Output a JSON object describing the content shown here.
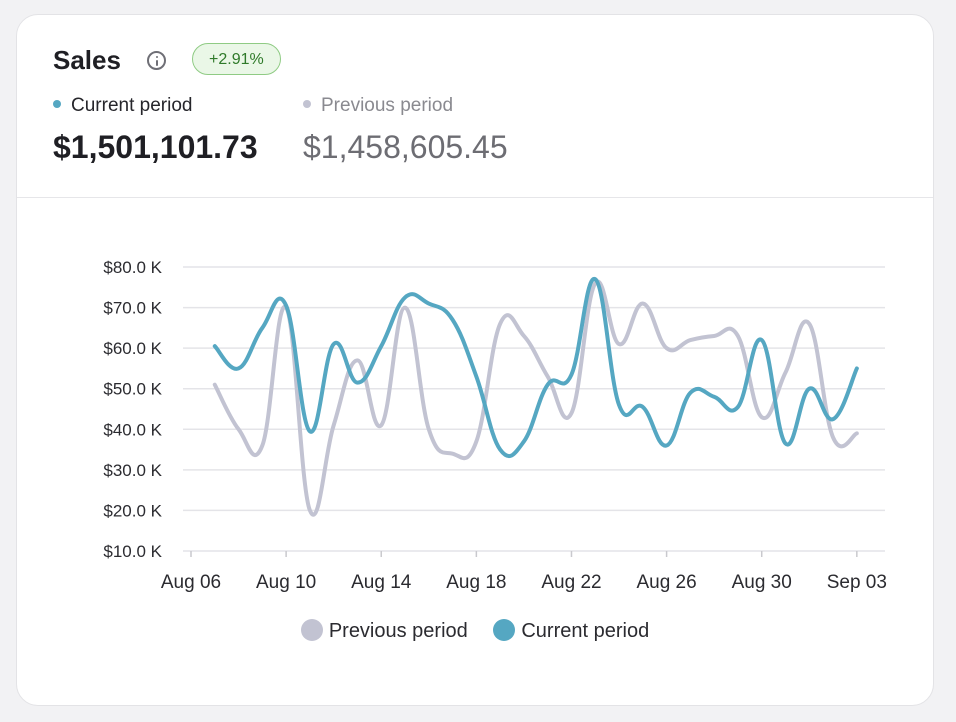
{
  "card": {
    "title": "Sales",
    "info_icon": "info-circle-icon",
    "change_badge": "+2.91%",
    "current_label": "Current period",
    "previous_label": "Previous period",
    "current_total": "$1,501,101.73",
    "previous_total": "$1,458,605.45"
  },
  "colors": {
    "current": "#55a7c2",
    "previous": "#c2c3d2",
    "badge_bg": "#eaf7e7",
    "badge_text": "#2f7a2a"
  },
  "chart_data": {
    "type": "line",
    "title": "",
    "xlabel": "",
    "ylabel": "",
    "ylim": [
      10,
      80
    ],
    "y_ticks": [
      "$10.0 K",
      "$20.0 K",
      "$30.0 K",
      "$40.0 K",
      "$50.0 K",
      "$60.0 K",
      "$70.0 K",
      "$80.0 K"
    ],
    "x_ticks": [
      "Aug 06",
      "Aug 10",
      "Aug 14",
      "Aug 18",
      "Aug 22",
      "Aug 26",
      "Aug 30",
      "Sep 03"
    ],
    "grid": true,
    "legend_position": "bottom",
    "x": [
      "Aug 07",
      "Aug 08",
      "Aug 09",
      "Aug 10",
      "Aug 11",
      "Aug 12",
      "Aug 13",
      "Aug 14",
      "Aug 15",
      "Aug 16",
      "Aug 17",
      "Aug 18",
      "Aug 19",
      "Aug 20",
      "Aug 21",
      "Aug 22",
      "Aug 23",
      "Aug 24",
      "Aug 25",
      "Aug 26",
      "Aug 27",
      "Aug 28",
      "Aug 29",
      "Aug 30",
      "Aug 31",
      "Sep 01",
      "Sep 02",
      "Sep 03"
    ],
    "series": [
      {
        "name": "Previous period",
        "values": [
          51,
          40,
          36,
          70,
          20,
          41,
          57,
          41,
          70,
          40,
          34,
          37,
          66,
          63,
          53,
          44,
          76,
          61,
          71,
          60,
          62,
          63,
          63,
          43,
          54,
          66,
          38,
          39
        ]
      },
      {
        "name": "Current period",
        "values": [
          60.5,
          55,
          65,
          70.5,
          39.5,
          61,
          51.5,
          60.5,
          72.5,
          71,
          67,
          53,
          35,
          37,
          51,
          53.5,
          77,
          46,
          45.5,
          36,
          49,
          48,
          45.5,
          62,
          36.5,
          50,
          42.5,
          55
        ]
      }
    ]
  }
}
